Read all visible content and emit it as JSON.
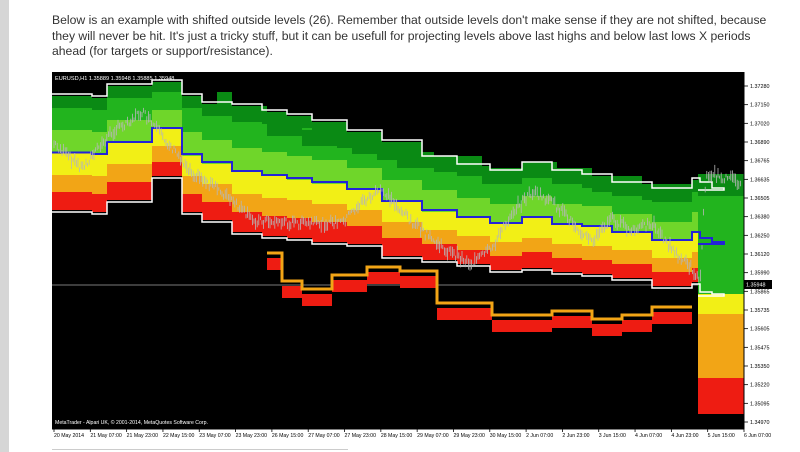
{
  "post": {
    "paragraph": "Below is an example with shifted outside levels (26). Remember that outside levels don't make sense if they are not shifted, because they will never be hit. It's just a tricky stuff, but it can be usefull for projecting levels above last highs and below last lows X periods ahead (for targets or support/resistance)."
  },
  "chart_window": {
    "symbol_header": "EURUSD,H1  1.35889 1.35948 1.35885 1.35948",
    "current_price": "1.35948",
    "copyright": "MetaTrader - Alpari UK, © 2001-2014, MetaQuotes Software Corp.",
    "price_axis": [
      "1.37280",
      "1.37150",
      "1.37020",
      "1.36890",
      "1.36765",
      "1.36635",
      "1.36505",
      "1.36380",
      "1.36250",
      "1.36120",
      "1.35990",
      "1.35865",
      "1.35735",
      "1.35605",
      "1.35475",
      "1.35350",
      "1.35220",
      "1.35095",
      "1.34970"
    ],
    "time_axis": [
      "20 May 2014",
      "21 May 07:00",
      "21 May 23:00",
      "22 May 15:00",
      "23 May 07:00",
      "23 May 23:00",
      "26 May 15:00",
      "27 May 07:00",
      "27 May 23:00",
      "28 May 15:00",
      "29 May 07:00",
      "29 May 23:00",
      "30 May 15:00",
      "2 Jun 07:00",
      "2 Jun 23:00",
      "3 Jun 15:00",
      "4 Jun 07:00",
      "4 Jun 23:00",
      "5 Jun 15:00",
      "6 Jun 07:00"
    ],
    "colors": {
      "background": "#000000",
      "level_dark_green": "#0a8a14",
      "level_green": "#22b41e",
      "level_light_green": "#6fd62a",
      "level_yellow": "#f2ef16",
      "level_orange": "#f2a516",
      "level_red": "#ee1c12",
      "midline": "#2323d8",
      "outer_band_line": "#ffffff",
      "price_line": "#b7b7b7"
    }
  }
}
